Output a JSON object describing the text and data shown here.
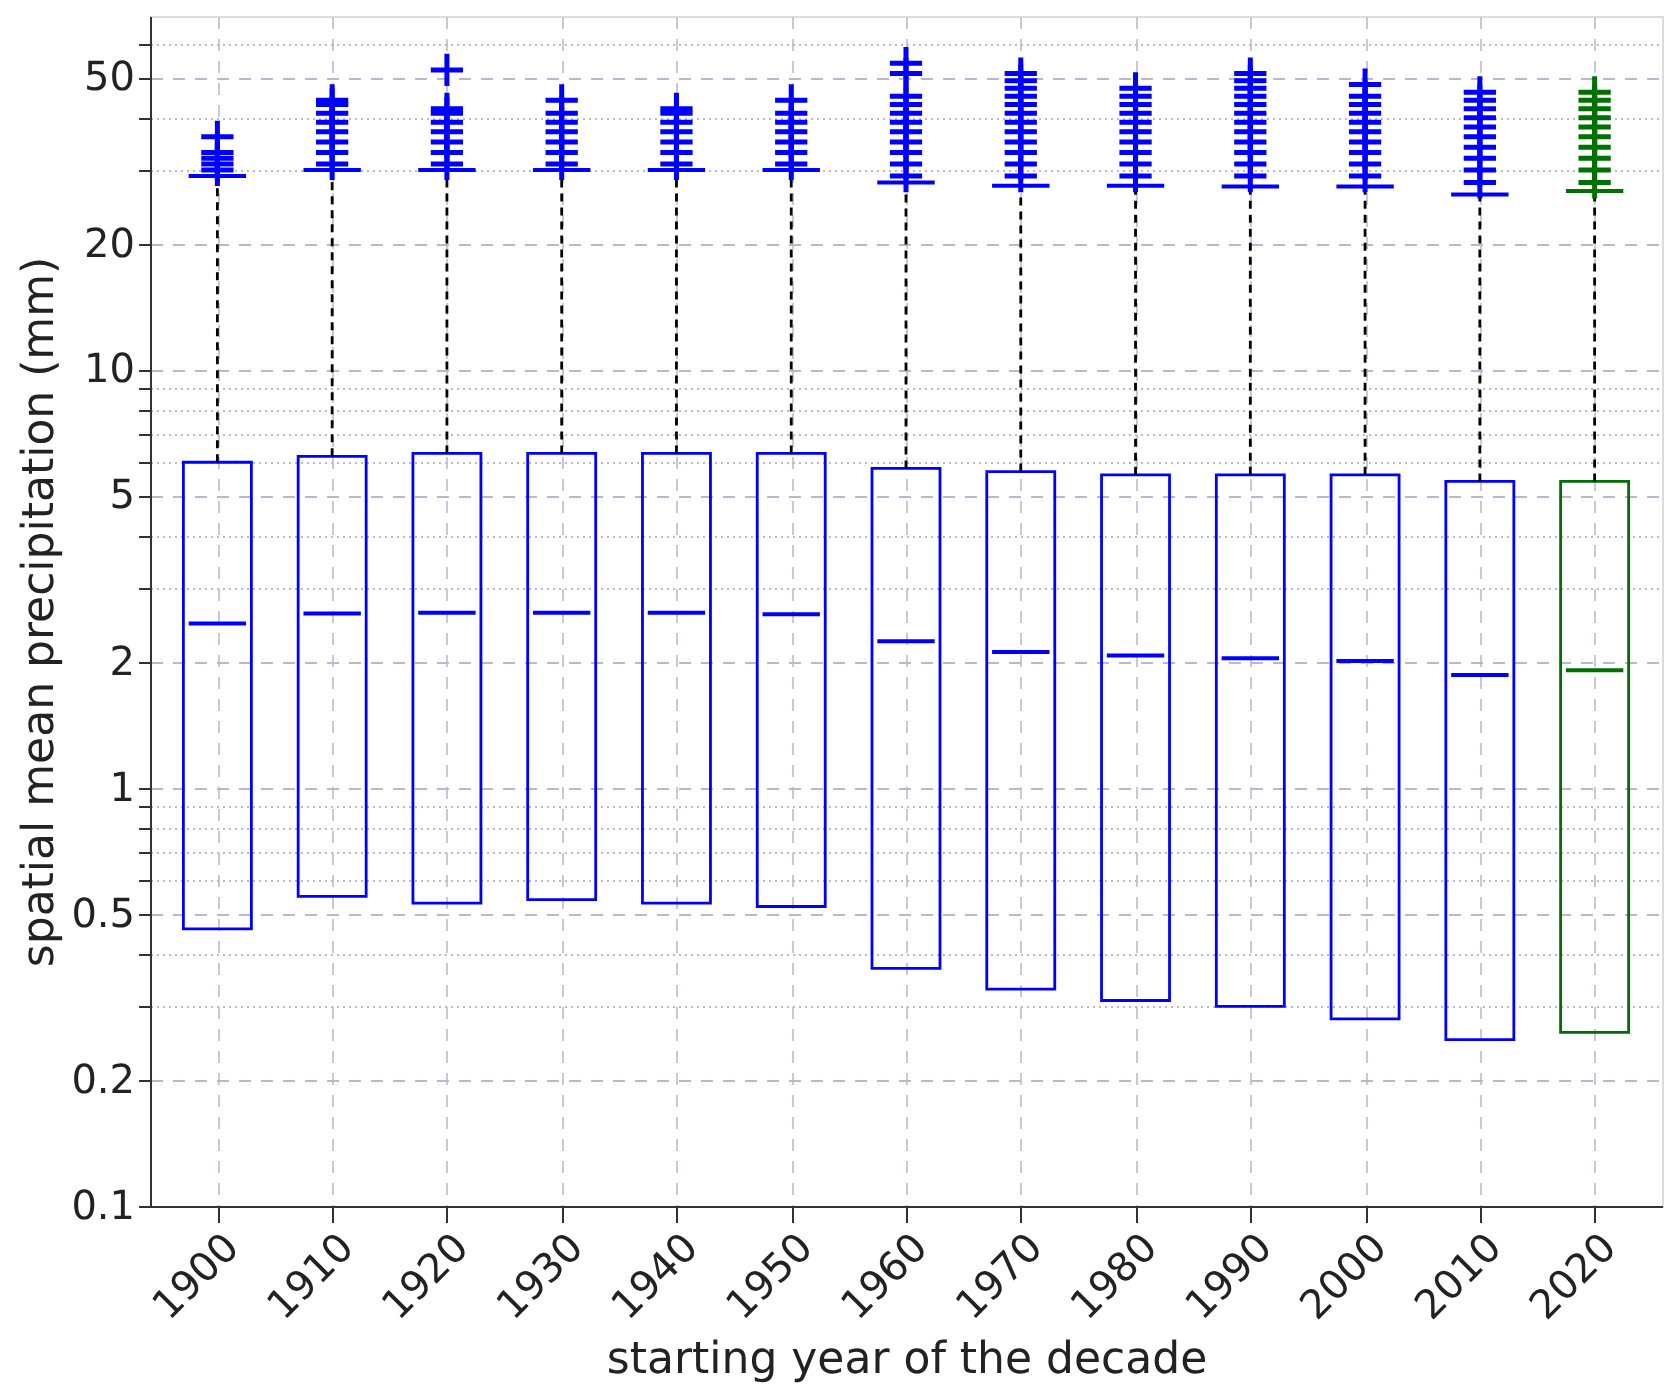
{
  "chart_data": {
    "type": "box",
    "xlabel": "starting year of the decade",
    "ylabel": "spatial mean precipitation (mm)",
    "categories": [
      "1900",
      "1910",
      "1920",
      "1930",
      "1940",
      "1950",
      "1960",
      "1970",
      "1980",
      "1990",
      "2000",
      "2010",
      "2020"
    ],
    "colors": [
      "#0000ff",
      "#0000ff",
      "#0000ff",
      "#0000ff",
      "#0000ff",
      "#0000ff",
      "#0000ff",
      "#0000ff",
      "#0000ff",
      "#0000ff",
      "#0000ff",
      "#0000ff",
      "#007000"
    ],
    "boxes": [
      {
        "low": 0.46,
        "q1": 0.46,
        "median": 2.47,
        "q3": 6.0,
        "high": 29,
        "outliers": [
          30,
          31,
          32,
          33,
          36
        ]
      },
      {
        "low": 0.55,
        "q1": 0.55,
        "median": 2.61,
        "q3": 6.2,
        "high": 30,
        "outliers": [
          31,
          33,
          35,
          37,
          39,
          41,
          43,
          44
        ]
      },
      {
        "low": 0.53,
        "q1": 0.53,
        "median": 2.62,
        "q3": 6.3,
        "high": 30,
        "outliers": [
          31,
          33,
          35,
          37,
          39,
          41,
          42,
          52
        ]
      },
      {
        "low": 0.54,
        "q1": 0.54,
        "median": 2.62,
        "q3": 6.3,
        "high": 30,
        "outliers": [
          31,
          33,
          35,
          37,
          39,
          41,
          44
        ]
      },
      {
        "low": 0.53,
        "q1": 0.53,
        "median": 2.62,
        "q3": 6.3,
        "high": 30,
        "outliers": [
          31,
          33,
          35,
          37,
          39,
          41,
          42
        ]
      },
      {
        "low": 0.52,
        "q1": 0.52,
        "median": 2.6,
        "q3": 6.3,
        "high": 30,
        "outliers": [
          31,
          33,
          35,
          37,
          39,
          41,
          44
        ]
      },
      {
        "low": 0.37,
        "q1": 0.37,
        "median": 2.24,
        "q3": 5.8,
        "high": 28,
        "outliers": [
          29,
          31,
          33,
          35,
          37,
          39,
          41,
          43,
          45,
          51,
          54
        ]
      },
      {
        "low": 0.33,
        "q1": 0.33,
        "median": 2.11,
        "q3": 5.7,
        "high": 27.5,
        "outliers": [
          29,
          31,
          33,
          35,
          37,
          39,
          41,
          43,
          45,
          47,
          49,
          51
        ]
      },
      {
        "low": 0.31,
        "q1": 0.31,
        "median": 2.07,
        "q3": 5.6,
        "high": 27.5,
        "outliers": [
          29,
          31,
          33,
          35,
          37,
          39,
          41,
          43,
          45,
          47
        ]
      },
      {
        "low": 0.3,
        "q1": 0.3,
        "median": 2.04,
        "q3": 5.6,
        "high": 27.4,
        "outliers": [
          29,
          31,
          33,
          35,
          37,
          39,
          41,
          43,
          45,
          47,
          49,
          51
        ]
      },
      {
        "low": 0.28,
        "q1": 0.28,
        "median": 2.01,
        "q3": 5.6,
        "high": 27.4,
        "outliers": [
          29,
          31,
          33,
          35,
          37,
          39,
          41,
          43,
          45,
          48
        ]
      },
      {
        "low": 0.25,
        "q1": 0.25,
        "median": 1.86,
        "q3": 5.4,
        "high": 26.2,
        "outliers": [
          28,
          30,
          32,
          34,
          36,
          38,
          40,
          42,
          44,
          46
        ]
      },
      {
        "low": 0.26,
        "q1": 0.26,
        "median": 1.91,
        "q3": 5.4,
        "high": 26.7,
        "outliers": [
          28,
          30,
          32,
          34,
          36,
          38,
          40,
          42,
          44,
          46
        ]
      }
    ],
    "log": true,
    "ylim": [
      0.1,
      70
    ],
    "yticks": [
      0.1,
      0.2,
      {
        "value": 0.3,
        "label": null
      },
      {
        "value": 0.4,
        "label": null
      },
      0.5,
      {
        "value": 0.6,
        "label": null
      },
      {
        "value": 0.7,
        "label": null
      },
      {
        "value": 0.8,
        "label": null
      },
      {
        "value": 0.9,
        "label": null
      },
      1,
      2,
      {
        "value": 3,
        "label": null
      },
      {
        "value": 4,
        "label": null
      },
      5,
      {
        "value": 6,
        "label": null
      },
      {
        "value": 7,
        "label": null
      },
      {
        "value": 8,
        "label": null
      },
      {
        "value": 9,
        "label": null
      },
      10,
      20,
      {
        "value": 30,
        "label": null
      },
      {
        "value": 40,
        "label": null
      },
      50,
      {
        "value": 60,
        "label": null
      }
    ],
    "grid": true
  }
}
